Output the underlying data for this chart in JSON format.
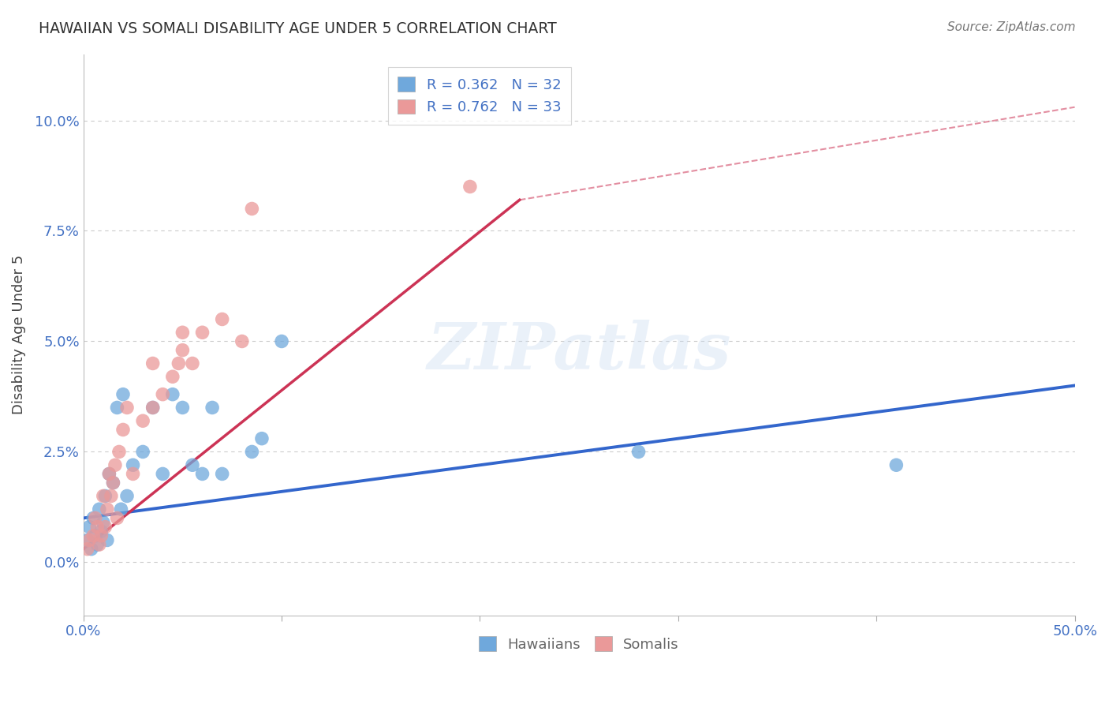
{
  "title": "HAWAIIAN VS SOMALI DISABILITY AGE UNDER 5 CORRELATION CHART",
  "source": "Source: ZipAtlas.com",
  "ylabel": "Disability Age Under 5",
  "ylabel_ticks": [
    "0.0%",
    "2.5%",
    "5.0%",
    "7.5%",
    "10.0%"
  ],
  "ylabel_tick_vals": [
    0.0,
    2.5,
    5.0,
    7.5,
    10.0
  ],
  "xlim": [
    0.0,
    50.0
  ],
  "ylim": [
    -1.2,
    11.5
  ],
  "xtick_vals": [
    0,
    50
  ],
  "xtick_labels": [
    "0.0%",
    "50.0%"
  ],
  "watermark": "ZIPatlas",
  "legend_r_label": "R = 0.362   N = 32",
  "legend_r_label2": "R = 0.762   N = 33",
  "hawaiian_color": "#6fa8dc",
  "somali_color": "#ea9999",
  "hawaiian_line_color": "#3366cc",
  "somali_line_color": "#cc3355",
  "background_color": "#ffffff",
  "grid_color": "#cccccc",
  "title_color": "#333333",
  "axis_label_color": "#4472c4",
  "hawaiian_r": 0.362,
  "somali_r": 0.762,
  "hawaiian_line": [
    0.0,
    1.0,
    50.0,
    4.0
  ],
  "somali_line_solid": [
    0.0,
    0.3,
    22.0,
    8.2
  ],
  "somali_line_dashed": [
    22.0,
    8.2,
    50.0,
    10.3
  ],
  "hawaiian_points": [
    [
      0.2,
      0.5
    ],
    [
      0.3,
      0.8
    ],
    [
      0.4,
      0.3
    ],
    [
      0.5,
      1.0
    ],
    [
      0.6,
      0.6
    ],
    [
      0.7,
      0.4
    ],
    [
      0.8,
      1.2
    ],
    [
      0.9,
      0.7
    ],
    [
      1.0,
      0.9
    ],
    [
      1.1,
      1.5
    ],
    [
      1.2,
      0.5
    ],
    [
      1.3,
      2.0
    ],
    [
      1.5,
      1.8
    ],
    [
      1.7,
      3.5
    ],
    [
      1.9,
      1.2
    ],
    [
      2.0,
      3.8
    ],
    [
      2.2,
      1.5
    ],
    [
      2.5,
      2.2
    ],
    [
      3.0,
      2.5
    ],
    [
      3.5,
      3.5
    ],
    [
      4.0,
      2.0
    ],
    [
      4.5,
      3.8
    ],
    [
      5.0,
      3.5
    ],
    [
      5.5,
      2.2
    ],
    [
      6.0,
      2.0
    ],
    [
      6.5,
      3.5
    ],
    [
      7.0,
      2.0
    ],
    [
      8.5,
      2.5
    ],
    [
      9.0,
      2.8
    ],
    [
      10.0,
      5.0
    ],
    [
      28.0,
      2.5
    ],
    [
      41.0,
      2.2
    ]
  ],
  "somali_points": [
    [
      0.2,
      0.3
    ],
    [
      0.3,
      0.5
    ],
    [
      0.5,
      0.6
    ],
    [
      0.6,
      1.0
    ],
    [
      0.7,
      0.8
    ],
    [
      0.8,
      0.4
    ],
    [
      0.9,
      0.6
    ],
    [
      1.0,
      1.5
    ],
    [
      1.1,
      0.8
    ],
    [
      1.2,
      1.2
    ],
    [
      1.3,
      2.0
    ],
    [
      1.4,
      1.5
    ],
    [
      1.5,
      1.8
    ],
    [
      1.6,
      2.2
    ],
    [
      1.7,
      1.0
    ],
    [
      1.8,
      2.5
    ],
    [
      2.0,
      3.0
    ],
    [
      2.2,
      3.5
    ],
    [
      2.5,
      2.0
    ],
    [
      3.0,
      3.2
    ],
    [
      3.5,
      3.5
    ],
    [
      4.0,
      3.8
    ],
    [
      4.5,
      4.2
    ],
    [
      5.0,
      4.8
    ],
    [
      5.5,
      4.5
    ],
    [
      6.0,
      5.2
    ],
    [
      7.0,
      5.5
    ],
    [
      8.0,
      5.0
    ],
    [
      4.8,
      4.5
    ],
    [
      19.5,
      8.5
    ],
    [
      3.5,
      4.5
    ],
    [
      5.0,
      5.2
    ],
    [
      8.5,
      8.0
    ]
  ]
}
